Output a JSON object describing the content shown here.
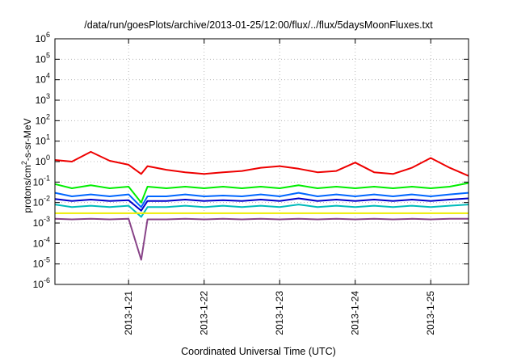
{
  "chart_data": {
    "type": "line",
    "title": "/data/run/goesPlots/archive/2013-01-25/12:00/flux/../flux/5daysMoonFluxes.txt",
    "xlabel": "Coordinated Universal Time (UTC)",
    "ylabel": "protons/cm²-s-sr-MeV",
    "yscale": "log",
    "ylim": [
      1e-06,
      1000000.0
    ],
    "xlim": [
      "2013-01-20 00:36",
      "2013-01-25 12:00"
    ],
    "x_ticks": [
      "2013-1-21",
      "2013-1-22",
      "2013-1-23",
      "2013-1-24",
      "2013-1-25"
    ],
    "y_ticks": [
      {
        "exp": -6
      },
      {
        "exp": -5
      },
      {
        "exp": -4
      },
      {
        "exp": -3
      },
      {
        "exp": -2
      },
      {
        "exp": -1
      },
      {
        "exp": 0
      },
      {
        "exp": 1
      },
      {
        "exp": 2
      },
      {
        "exp": 3
      },
      {
        "exp": 4
      },
      {
        "exp": 5
      },
      {
        "exp": 6
      }
    ],
    "y_tick_base": "10",
    "grid": true,
    "x": [
      "2013-01-20 00:36",
      "2013-01-20 06:00",
      "2013-01-20 12:00",
      "2013-01-20 18:00",
      "2013-01-21 00:00",
      "2013-01-21 04:00",
      "2013-01-21 06:00",
      "2013-01-21 12:00",
      "2013-01-21 18:00",
      "2013-01-22 00:00",
      "2013-01-22 06:00",
      "2013-01-22 12:00",
      "2013-01-22 18:00",
      "2013-01-23 00:00",
      "2013-01-23 06:00",
      "2013-01-23 12:00",
      "2013-01-23 18:00",
      "2013-01-24 00:00",
      "2013-01-24 06:00",
      "2013-01-24 12:00",
      "2013-01-24 18:00",
      "2013-01-25 00:00",
      "2013-01-25 06:00",
      "2013-01-25 12:00"
    ],
    "series": [
      {
        "color": "#ee0000",
        "values": [
          1.2,
          1.0,
          3.0,
          1.1,
          0.7,
          0.25,
          0.6,
          0.4,
          0.3,
          0.25,
          0.3,
          0.35,
          0.5,
          0.6,
          0.45,
          0.3,
          0.35,
          0.9,
          0.3,
          0.25,
          0.5,
          1.5,
          0.5,
          0.2
        ]
      },
      {
        "color": "#00ee00",
        "values": [
          0.08,
          0.05,
          0.07,
          0.05,
          0.06,
          0.01,
          0.06,
          0.05,
          0.06,
          0.05,
          0.06,
          0.05,
          0.06,
          0.05,
          0.07,
          0.05,
          0.06,
          0.05,
          0.06,
          0.05,
          0.06,
          0.05,
          0.06,
          0.09
        ]
      },
      {
        "color": "#0066ff",
        "values": [
          0.03,
          0.02,
          0.025,
          0.02,
          0.025,
          0.006,
          0.02,
          0.02,
          0.025,
          0.02,
          0.022,
          0.02,
          0.025,
          0.02,
          0.03,
          0.02,
          0.025,
          0.02,
          0.025,
          0.02,
          0.025,
          0.02,
          0.025,
          0.03
        ]
      },
      {
        "color": "#0000cc",
        "values": [
          0.015,
          0.012,
          0.014,
          0.012,
          0.013,
          0.004,
          0.012,
          0.012,
          0.014,
          0.012,
          0.013,
          0.012,
          0.014,
          0.012,
          0.016,
          0.012,
          0.014,
          0.012,
          0.014,
          0.012,
          0.014,
          0.012,
          0.014,
          0.016
        ]
      },
      {
        "color": "#00bbbb",
        "values": [
          0.008,
          0.006,
          0.007,
          0.006,
          0.007,
          0.002,
          0.006,
          0.006,
          0.007,
          0.006,
          0.007,
          0.006,
          0.007,
          0.006,
          0.008,
          0.006,
          0.007,
          0.006,
          0.007,
          0.006,
          0.007,
          0.006,
          0.007,
          0.008
        ]
      },
      {
        "color": "#eeee00",
        "values": [
          0.003,
          0.003,
          0.003,
          0.003,
          0.003,
          0.003,
          0.003,
          0.003,
          0.003,
          0.003,
          0.003,
          0.003,
          0.003,
          0.003,
          0.003,
          0.003,
          0.003,
          0.003,
          0.003,
          0.003,
          0.003,
          0.003,
          0.003,
          0.003
        ]
      },
      {
        "color": "#884488",
        "values": [
          0.0016,
          0.0015,
          0.0016,
          0.0015,
          0.0016,
          1.6e-05,
          0.0015,
          0.0015,
          0.0016,
          0.0015,
          0.0016,
          0.0015,
          0.0016,
          0.0015,
          0.0016,
          0.0015,
          0.0016,
          0.0015,
          0.0016,
          0.0015,
          0.0016,
          0.0015,
          0.0016,
          0.0016
        ]
      }
    ]
  }
}
